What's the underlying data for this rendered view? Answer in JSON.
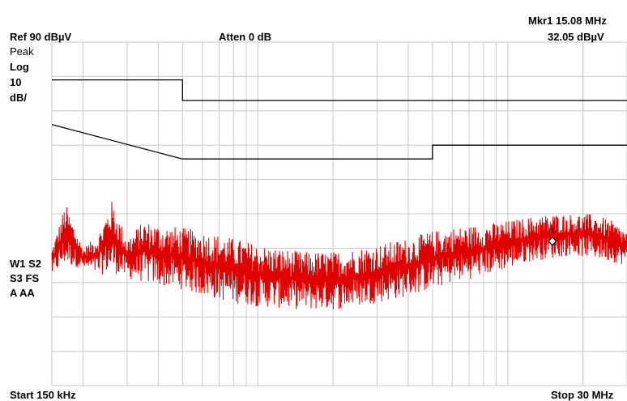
{
  "header": {
    "ref_level": "Ref 90 dBµV",
    "attenuation": "Atten 0 dB",
    "marker_label": "Mkr1  15.08 MHz",
    "marker_value": "32.05 dBµV"
  },
  "side_labels": {
    "detector": "Peak",
    "scale_type": "Log",
    "scale_value": "10",
    "scale_unit": "dB/",
    "trace_line1": "W1 S2",
    "trace_line2": "S3  FS",
    "trace_line3": "A   AA"
  },
  "footer": {
    "start": "Start 150 kHz",
    "stop": "Stop 30 MHz"
  },
  "marker": {
    "id": "1",
    "freq_mhz": 15.08,
    "level_dbuv": 32.05
  },
  "chart_data": {
    "type": "line",
    "x_scale": "log",
    "xlim_mhz": [
      0.15,
      30
    ],
    "ylim_dbuv": [
      -10,
      90
    ],
    "y_divisions": 10,
    "grid": true,
    "limit_lines": [
      {
        "name": "quasi-peak",
        "points": [
          [
            0.15,
            79
          ],
          [
            0.5,
            79
          ],
          [
            0.5,
            73
          ],
          [
            30,
            73
          ]
        ]
      },
      {
        "name": "average",
        "points": [
          [
            0.15,
            66
          ],
          [
            0.5,
            56
          ],
          [
            5,
            56
          ],
          [
            5,
            60
          ],
          [
            30,
            60
          ]
        ]
      }
    ],
    "trace_color": "#e00000",
    "trace_envelope": [
      [
        0.15,
        22,
        30
      ],
      [
        0.17,
        25,
        43
      ],
      [
        0.2,
        24,
        30
      ],
      [
        0.23,
        22,
        34
      ],
      [
        0.26,
        23,
        44
      ],
      [
        0.3,
        21,
        33
      ],
      [
        0.35,
        20,
        38
      ],
      [
        0.4,
        19,
        37
      ],
      [
        0.5,
        18,
        36
      ],
      [
        0.6,
        16,
        35
      ],
      [
        0.8,
        14,
        33
      ],
      [
        1.0,
        13,
        31
      ],
      [
        1.5,
        12,
        29
      ],
      [
        2.0,
        12,
        29
      ],
      [
        2.5,
        13,
        30
      ],
      [
        3.0,
        14,
        31
      ],
      [
        4.0,
        16,
        33
      ],
      [
        5.0,
        18,
        35
      ],
      [
        6.0,
        20,
        36
      ],
      [
        8.0,
        22,
        37
      ],
      [
        10.0,
        24,
        38
      ],
      [
        12.0,
        26,
        39
      ],
      [
        15.0,
        27,
        40
      ],
      [
        18.0,
        28,
        40
      ],
      [
        22.0,
        27,
        40
      ],
      [
        26.0,
        26,
        38
      ],
      [
        30.0,
        25,
        35
      ]
    ]
  }
}
